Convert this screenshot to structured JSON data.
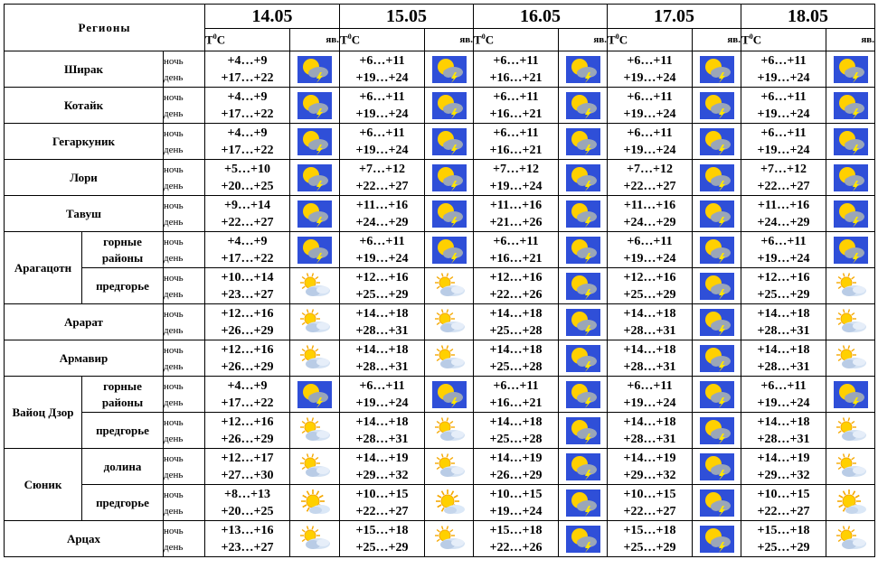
{
  "header": {
    "regions_label": "Регионы",
    "temp_label_prefix": "Т",
    "temp_label_sup": "0",
    "temp_label_suffix": "C",
    "phen_label": "яв."
  },
  "dates": [
    "14.05",
    "15.05",
    "16.05",
    "17.05",
    "18.05"
  ],
  "period_labels": {
    "night": "ночь",
    "day": "день"
  },
  "icon_colors": {
    "sky": "#2f4fd8",
    "sun": "#ffd000",
    "cloud": "#9aa6b8",
    "lightning": "#ffe600"
  },
  "groups": [
    {
      "region": "Ширак",
      "rows": [
        {
          "temps": [
            {
              "night": "+4…+9",
              "day": "+17…+22",
              "icon": "thunderstorm-icon"
            },
            {
              "night": "+6…+11",
              "day": "+19…+24",
              "icon": "thunderstorm-icon"
            },
            {
              "night": "+6…+11",
              "day": "+16…+21",
              "icon": "thunderstorm-icon"
            },
            {
              "night": "+6…+11",
              "day": "+19…+24",
              "icon": "thunderstorm-icon"
            },
            {
              "night": "+6…+11",
              "day": "+19…+24",
              "icon": "thunderstorm-icon"
            }
          ]
        }
      ]
    },
    {
      "region": "Котайк",
      "rows": [
        {
          "temps": [
            {
              "night": "+4…+9",
              "day": "+17…+22",
              "icon": "thunderstorm-icon"
            },
            {
              "night": "+6…+11",
              "day": "+19…+24",
              "icon": "thunderstorm-icon"
            },
            {
              "night": "+6…+11",
              "day": "+16…+21",
              "icon": "thunderstorm-icon"
            },
            {
              "night": "+6…+11",
              "day": "+19…+24",
              "icon": "thunderstorm-icon"
            },
            {
              "night": "+6…+11",
              "day": "+19…+24",
              "icon": "thunderstorm-icon"
            }
          ]
        }
      ]
    },
    {
      "region": "Гегаркуник",
      "rows": [
        {
          "temps": [
            {
              "night": "+4…+9",
              "day": "+17…+22",
              "icon": "thunderstorm-icon"
            },
            {
              "night": "+6…+11",
              "day": "+19…+24",
              "icon": "thunderstorm-icon"
            },
            {
              "night": "+6…+11",
              "day": "+16…+21",
              "icon": "thunderstorm-icon"
            },
            {
              "night": "+6…+11",
              "day": "+19…+24",
              "icon": "thunderstorm-icon"
            },
            {
              "night": "+6…+11",
              "day": "+19…+24",
              "icon": "thunderstorm-icon"
            }
          ]
        }
      ]
    },
    {
      "region": "Лори",
      "rows": [
        {
          "temps": [
            {
              "night": "+5…+10",
              "day": "+20…+25",
              "icon": "thunderstorm-icon"
            },
            {
              "night": "+7…+12",
              "day": "+22…+27",
              "icon": "thunderstorm-icon"
            },
            {
              "night": "+7…+12",
              "day": "+19…+24",
              "icon": "thunderstorm-icon"
            },
            {
              "night": "+7…+12",
              "day": "+22…+27",
              "icon": "thunderstorm-icon"
            },
            {
              "night": "+7…+12",
              "day": "+22…+27",
              "icon": "thunderstorm-icon"
            }
          ]
        }
      ]
    },
    {
      "region": "Тавуш",
      "rows": [
        {
          "temps": [
            {
              "night": "+9…+14",
              "day": "+22…+27",
              "icon": "thunderstorm-icon"
            },
            {
              "night": "+11…+16",
              "day": "+24…+29",
              "icon": "thunderstorm-icon"
            },
            {
              "night": "+11…+16",
              "day": "+21…+26",
              "icon": "thunderstorm-icon"
            },
            {
              "night": "+11…+16",
              "day": "+24…+29",
              "icon": "thunderstorm-icon"
            },
            {
              "night": "+11…+16",
              "day": "+24…+29",
              "icon": "thunderstorm-icon"
            }
          ]
        }
      ]
    },
    {
      "region": "Арагацотн",
      "rows": [
        {
          "sub": "горные районы",
          "temps": [
            {
              "night": "+4…+9",
              "day": "+17…+22",
              "icon": "thunderstorm-icon"
            },
            {
              "night": "+6…+11",
              "day": "+19…+24",
              "icon": "thunderstorm-icon"
            },
            {
              "night": "+6…+11",
              "day": "+16…+21",
              "icon": "thunderstorm-icon"
            },
            {
              "night": "+6…+11",
              "day": "+19…+24",
              "icon": "thunderstorm-icon"
            },
            {
              "night": "+6…+11",
              "day": "+19…+24",
              "icon": "thunderstorm-icon"
            }
          ]
        },
        {
          "sub": "предгорье",
          "temps": [
            {
              "night": "+10…+14",
              "day": "+23…+27",
              "icon": "sun-cloud-icon"
            },
            {
              "night": "+12…+16",
              "day": "+25…+29",
              "icon": "sun-cloud-icon"
            },
            {
              "night": "+12…+16",
              "day": "+22…+26",
              "icon": "thunderstorm-icon"
            },
            {
              "night": "+12…+16",
              "day": "+25…+29",
              "icon": "thunderstorm-icon"
            },
            {
              "night": "+12…+16",
              "day": "+25…+29",
              "icon": "sun-cloud-icon"
            }
          ]
        }
      ]
    },
    {
      "region": "Арарат",
      "rows": [
        {
          "temps": [
            {
              "night": "+12…+16",
              "day": "+26…+29",
              "icon": "sun-cloud-icon"
            },
            {
              "night": "+14…+18",
              "day": "+28…+31",
              "icon": "sun-cloud-icon"
            },
            {
              "night": "+14…+18",
              "day": "+25…+28",
              "icon": "thunderstorm-icon"
            },
            {
              "night": "+14…+18",
              "day": "+28…+31",
              "icon": "thunderstorm-icon"
            },
            {
              "night": "+14…+18",
              "day": "+28…+31",
              "icon": "sun-cloud-icon"
            }
          ]
        }
      ]
    },
    {
      "region": "Армавир",
      "rows": [
        {
          "temps": [
            {
              "night": "+12…+16",
              "day": "+26…+29",
              "icon": "sun-cloud-icon"
            },
            {
              "night": "+14…+18",
              "day": "+28…+31",
              "icon": "sun-cloud-icon"
            },
            {
              "night": "+14…+18",
              "day": "+25…+28",
              "icon": "thunderstorm-icon"
            },
            {
              "night": "+14…+18",
              "day": "+28…+31",
              "icon": "thunderstorm-icon"
            },
            {
              "night": "+14…+18",
              "day": "+28…+31",
              "icon": "sun-cloud-icon"
            }
          ]
        }
      ]
    },
    {
      "region": "Вайоц Дзор",
      "rows": [
        {
          "sub": "горные районы",
          "temps": [
            {
              "night": "+4…+9",
              "day": "+17…+22",
              "icon": "thunderstorm-icon"
            },
            {
              "night": "+6…+11",
              "day": "+19…+24",
              "icon": "thunderstorm-icon"
            },
            {
              "night": "+6…+11",
              "day": "+16…+21",
              "icon": "thunderstorm-icon"
            },
            {
              "night": "+6…+11",
              "day": "+19…+24",
              "icon": "thunderstorm-icon"
            },
            {
              "night": "+6…+11",
              "day": "+19…+24",
              "icon": "thunderstorm-icon"
            }
          ]
        },
        {
          "sub": "предгорье",
          "temps": [
            {
              "night": "+12…+16",
              "day": "+26…+29",
              "icon": "sun-cloud-icon"
            },
            {
              "night": "+14…+18",
              "day": "+28…+31",
              "icon": "sun-cloud-icon"
            },
            {
              "night": "+14…+18",
              "day": "+25…+28",
              "icon": "thunderstorm-icon"
            },
            {
              "night": "+14…+18",
              "day": "+28…+31",
              "icon": "thunderstorm-icon"
            },
            {
              "night": "+14…+18",
              "day": "+28…+31",
              "icon": "sun-cloud-icon"
            }
          ]
        }
      ]
    },
    {
      "region": "Сюник",
      "rows": [
        {
          "sub": "долина",
          "temps": [
            {
              "night": "+12…+17",
              "day": "+27…+30",
              "icon": "sun-cloud-icon"
            },
            {
              "night": "+14…+19",
              "day": "+29…+32",
              "icon": "sun-cloud-icon"
            },
            {
              "night": "+14…+19",
              "day": "+26…+29",
              "icon": "thunderstorm-icon"
            },
            {
              "night": "+14…+19",
              "day": "+29…+32",
              "icon": "thunderstorm-icon"
            },
            {
              "night": "+14…+19",
              "day": "+29…+32",
              "icon": "sun-cloud-icon"
            }
          ]
        },
        {
          "sub": "предгорье",
          "temps": [
            {
              "night": "+8…+13",
              "day": "+20…+25",
              "icon": "sunny-icon"
            },
            {
              "night": "+10…+15",
              "day": "+22…+27",
              "icon": "sunny-icon"
            },
            {
              "night": "+10…+15",
              "day": "+19…+24",
              "icon": "thunderstorm-icon"
            },
            {
              "night": "+10…+15",
              "day": "+22…+27",
              "icon": "thunderstorm-icon"
            },
            {
              "night": "+10…+15",
              "day": "+22…+27",
              "icon": "sunny-icon"
            }
          ]
        }
      ]
    },
    {
      "region": "Арцах",
      "rows": [
        {
          "temps": [
            {
              "night": "+13…+16",
              "day": "+23…+27",
              "icon": "sun-cloud-icon"
            },
            {
              "night": "+15…+18",
              "day": "+25…+29",
              "icon": "sun-cloud-icon"
            },
            {
              "night": "+15…+18",
              "day": "+22…+26",
              "icon": "thunderstorm-icon"
            },
            {
              "night": "+15…+18",
              "day": "+25…+29",
              "icon": "thunderstorm-icon"
            },
            {
              "night": "+15…+18",
              "day": "+25…+29",
              "icon": "sun-cloud-icon"
            }
          ]
        }
      ]
    }
  ]
}
